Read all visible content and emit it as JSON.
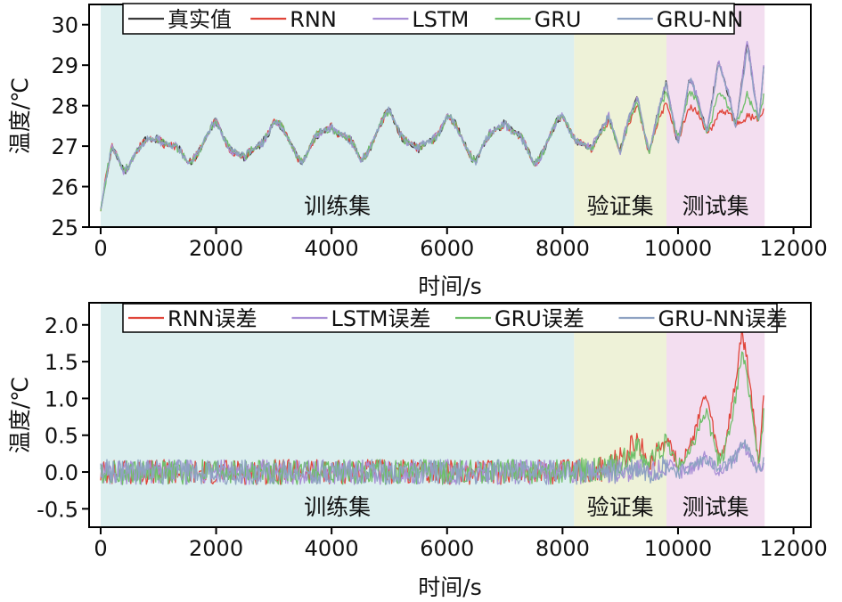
{
  "colors": {
    "train_region": "#dcefef",
    "val_region": "#eef2d8",
    "test_region": "#f3def0",
    "axis": "#000000"
  },
  "chart_data": [
    {
      "type": "line",
      "title": "",
      "xlabel": "时间/s",
      "ylabel": "温度/℃",
      "xlim": [
        -200,
        12300
      ],
      "ylim": [
        25,
        30.5
      ],
      "xticks": [
        0,
        2000,
        4000,
        6000,
        8000,
        10000,
        12000
      ],
      "xtick_labels": [
        "0",
        "2000",
        "4000",
        "6000",
        "8000",
        "10000",
        "12000"
      ],
      "yticks": [
        25,
        26,
        27,
        28,
        29,
        30
      ],
      "ytick_labels": [
        "25",
        "26",
        "27",
        "28",
        "29",
        "30"
      ],
      "grid": false,
      "legend_position": "top",
      "regions": [
        {
          "label": "训练集",
          "x_range": [
            0,
            8200
          ],
          "color": "#dcefef"
        },
        {
          "label": "验证集",
          "x_range": [
            8200,
            9800
          ],
          "color": "#eef2d8"
        },
        {
          "label": "测试集",
          "x_range": [
            9800,
            11500
          ],
          "color": "#f3def0"
        }
      ],
      "series": [
        {
          "name": "真实值",
          "color": "#3a3a3a"
        },
        {
          "name": "RNN",
          "color": "#e0453a"
        },
        {
          "name": "LSTM",
          "color": "#a98fd6"
        },
        {
          "name": "GRU",
          "color": "#6fbf6a"
        },
        {
          "name": "GRU-NN",
          "color": "#8ea2c2"
        }
      ],
      "x": [
        0,
        200,
        400,
        600,
        1000,
        1500,
        2000,
        2500,
        3000,
        3500,
        4000,
        4500,
        5000,
        5500,
        6000,
        6500,
        7000,
        7500,
        8000,
        8500,
        8800,
        9000,
        9300,
        9500,
        9800,
        10000,
        10200,
        10500,
        10700,
        11000,
        11200,
        11400,
        11500
      ],
      "values": [
        25.4,
        26.9,
        26.5,
        26.8,
        27.3,
        26.6,
        27.5,
        26.6,
        27.6,
        26.7,
        27.6,
        26.7,
        27.8,
        26.8,
        27.7,
        26.7,
        27.7,
        26.6,
        27.7,
        26.8,
        27.9,
        26.8,
        28.3,
        26.9,
        28.5,
        27.2,
        28.6,
        27.4,
        29.2,
        27.4,
        29.8,
        27.5,
        29.2
      ],
      "values_models": {
        "RNN": [
          25.4,
          26.9,
          26.5,
          26.8,
          27.3,
          26.6,
          27.5,
          26.6,
          27.6,
          26.7,
          27.6,
          26.7,
          27.8,
          26.8,
          27.7,
          26.7,
          27.7,
          26.6,
          27.7,
          26.8,
          27.8,
          26.8,
          28.1,
          26.9,
          28.0,
          27.3,
          27.9,
          27.4,
          27.9,
          27.5,
          27.9,
          27.6,
          27.8
        ],
        "GRU": [
          25.4,
          26.9,
          26.5,
          26.8,
          27.3,
          26.6,
          27.5,
          26.6,
          27.6,
          26.7,
          27.6,
          26.7,
          27.8,
          26.8,
          27.7,
          26.7,
          27.7,
          26.6,
          27.7,
          26.8,
          27.8,
          26.8,
          28.2,
          26.9,
          28.3,
          27.3,
          28.3,
          27.4,
          28.4,
          27.5,
          28.4,
          27.6,
          28.2
        ],
        "GRU-NN": [
          25.4,
          26.9,
          26.5,
          26.8,
          27.3,
          26.6,
          27.5,
          26.6,
          27.6,
          26.7,
          27.6,
          26.7,
          27.8,
          26.8,
          27.7,
          26.7,
          27.7,
          26.6,
          27.7,
          26.8,
          27.9,
          26.8,
          28.3,
          26.9,
          28.5,
          27.2,
          28.6,
          27.4,
          29.1,
          27.4,
          29.6,
          27.5,
          29.1
        ]
      }
    },
    {
      "type": "line",
      "title": "",
      "xlabel": "时间/s",
      "ylabel": "温度/℃",
      "xlim": [
        -200,
        12300
      ],
      "ylim": [
        -0.75,
        2.3
      ],
      "xticks": [
        0,
        2000,
        4000,
        6000,
        8000,
        10000,
        12000
      ],
      "xtick_labels": [
        "0",
        "2000",
        "4000",
        "6000",
        "8000",
        "10000",
        "12000"
      ],
      "yticks": [
        -0.5,
        0.0,
        0.5,
        1.0,
        1.5,
        2.0
      ],
      "ytick_labels": [
        "-0.5",
        "0.0",
        "0.5",
        "1.0",
        "1.5",
        "2.0"
      ],
      "grid": false,
      "legend_position": "top",
      "regions": [
        {
          "label": "训练集",
          "x_range": [
            0,
            8200
          ],
          "color": "#dcefef"
        },
        {
          "label": "验证集",
          "x_range": [
            8200,
            9800
          ],
          "color": "#eef2d8"
        },
        {
          "label": "测试集",
          "x_range": [
            9800,
            11500
          ],
          "color": "#f3def0"
        }
      ],
      "series": [
        {
          "name": "RNN误差",
          "color": "#e0453a"
        },
        {
          "name": "LSTM误差",
          "color": "#a98fd6"
        },
        {
          "name": "GRU误差",
          "color": "#6fbf6a"
        },
        {
          "name": "GRU-NN误差",
          "color": "#8ea2c2"
        }
      ],
      "x": [
        0,
        2000,
        4000,
        6000,
        8000,
        8800,
        9300,
        9500,
        9800,
        10000,
        10200,
        10400,
        10500,
        10700,
        10800,
        11000,
        11100,
        11200,
        11400,
        11500
      ],
      "values": [
        0.0,
        0.0,
        0.0,
        0.0,
        0.0,
        0.05,
        0.4,
        0.1,
        0.5,
        0.1,
        0.3,
        0.9,
        1.0,
        0.2,
        0.3,
        1.2,
        1.9,
        1.5,
        0.1,
        1.2
      ],
      "values_models": {
        "GRU": [
          0.0,
          0.0,
          0.0,
          0.0,
          0.0,
          0.05,
          0.3,
          0.1,
          0.4,
          0.1,
          0.25,
          0.7,
          0.8,
          0.15,
          0.25,
          1.0,
          1.6,
          1.3,
          0.1,
          0.9
        ],
        "GRU-NN": [
          0.0,
          0.0,
          0.0,
          0.0,
          0.0,
          0.0,
          0.05,
          0.0,
          0.1,
          0.0,
          0.05,
          0.15,
          0.2,
          0.0,
          0.05,
          0.2,
          0.4,
          0.3,
          0.0,
          0.2
        ]
      }
    }
  ]
}
